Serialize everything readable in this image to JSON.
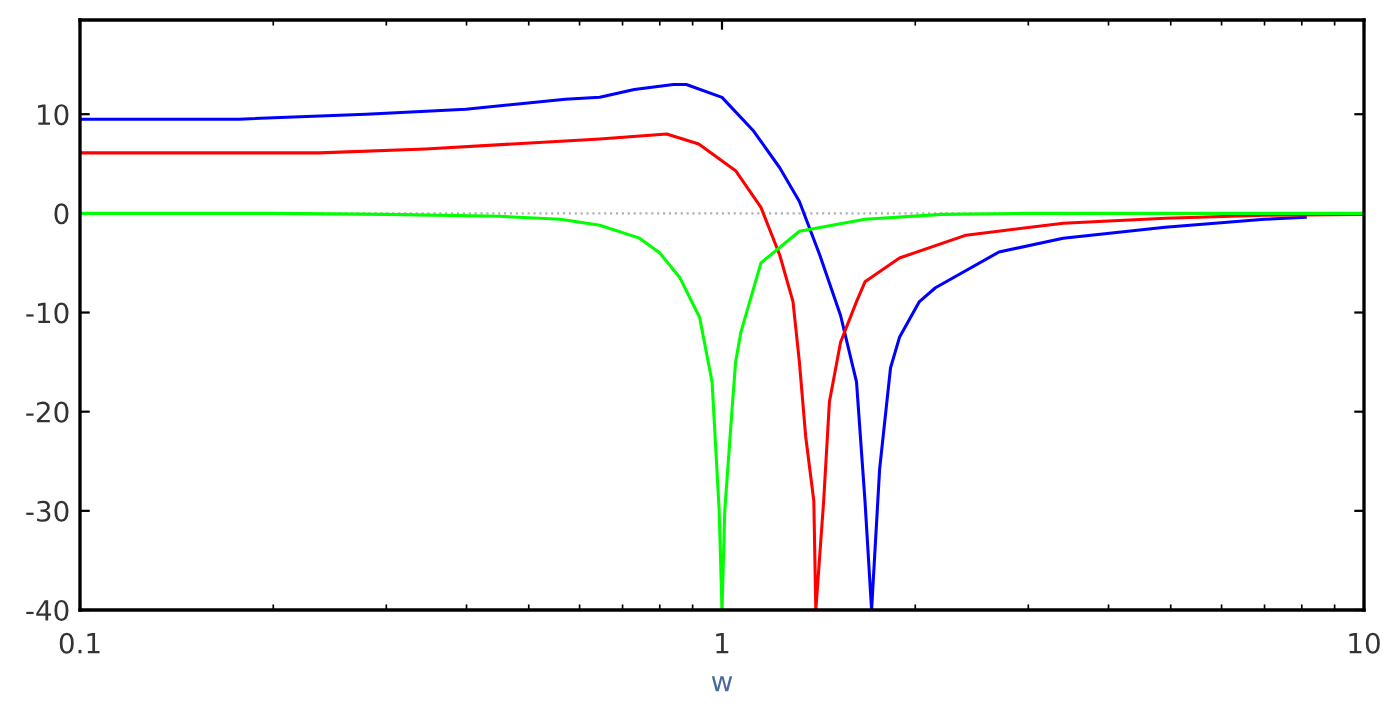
{
  "chart_data": {
    "type": "line",
    "xlabel": "w",
    "log": "x",
    "grid": false,
    "marker": "none",
    "line_style": "solid",
    "xlim": [
      0.1,
      10
    ],
    "xticks": [
      0.1,
      1,
      10
    ],
    "ylim": [
      -40,
      19.5
    ],
    "yticks": [
      -40,
      -30,
      -20,
      -10,
      0,
      10
    ],
    "ref_lines": [
      {
        "axis": "y",
        "value": 0,
        "color": "#b0b0b0",
        "line_style": "dotted"
      }
    ],
    "series": [
      {
        "color": "#0000ff",
        "x": [
          0.1,
          0.177,
          0.279,
          0.399,
          0.57,
          0.645,
          0.73,
          0.84,
          0.88,
          1.0,
          1.12,
          1.23,
          1.32,
          1.42,
          1.53,
          1.62,
          1.67,
          1.71,
          1.76,
          1.83,
          1.89,
          2.03,
          2.15,
          2.7,
          3.4,
          4.9,
          7.0,
          8.1
        ],
        "values": [
          9.5,
          9.5,
          10.0,
          10.5,
          11.5,
          11.7,
          12.5,
          13.0,
          13.0,
          11.7,
          8.3,
          4.6,
          1.2,
          -4.2,
          -10.3,
          -17,
          -29,
          -40,
          -25.8,
          -15.6,
          -12.5,
          -8.9,
          -7.5,
          -3.9,
          -2.5,
          -1.4,
          -0.6,
          -0.4
        ]
      },
      {
        "color": "#ff0000",
        "x": [
          0.1,
          0.236,
          0.345,
          0.57,
          0.645,
          0.82,
          0.92,
          1.05,
          1.15,
          1.23,
          1.29,
          1.32,
          1.35,
          1.39,
          1.4,
          1.44,
          1.47,
          1.53,
          1.62,
          1.67,
          1.89,
          2.4,
          3.4,
          4.9,
          7.0,
          10
        ],
        "values": [
          6.1,
          6.1,
          6.5,
          7.3,
          7.5,
          8.0,
          7.0,
          4.3,
          0.6,
          -4.2,
          -8.9,
          -15,
          -22.5,
          -29,
          -40,
          -29,
          -19,
          -13,
          -8.9,
          -6.9,
          -4.5,
          -2.2,
          -1.0,
          -0.5,
          -0.2,
          -0.1
        ]
      },
      {
        "color": "#00ff00",
        "x": [
          0.1,
          0.2,
          0.3,
          0.45,
          0.56,
          0.645,
          0.744,
          0.8,
          0.86,
          0.923,
          0.965,
          0.99,
          1.0,
          1.01,
          1.036,
          1.05,
          1.07,
          1.15,
          1.32,
          1.67,
          2.2,
          3.0,
          10
        ],
        "values": [
          0,
          0,
          -0.1,
          -0.3,
          -0.6,
          -1.2,
          -2.5,
          -4,
          -6.5,
          -10.5,
          -17,
          -30,
          -40,
          -30,
          -20,
          -15,
          -12,
          -5,
          -1.8,
          -0.6,
          -0.1,
          0,
          0
        ]
      }
    ]
  }
}
